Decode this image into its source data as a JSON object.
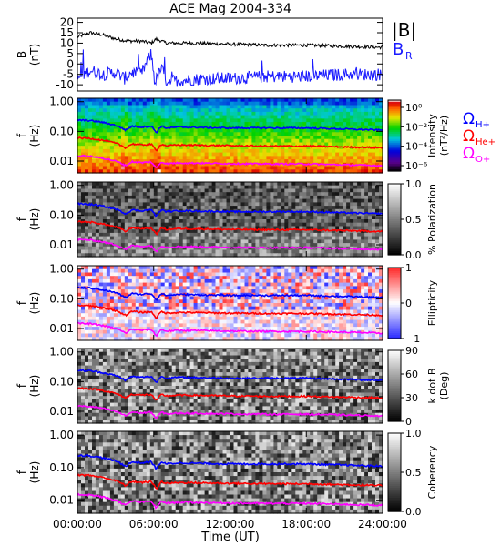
{
  "chart_data": [
    {
      "type": "line",
      "title": "ACE Mag 2004-334",
      "ylabel": "B\n(nT)",
      "ylim": [
        -13,
        22
      ],
      "yticks": [
        -10,
        -5,
        0,
        5,
        10,
        15,
        20
      ],
      "xlim": [
        0,
        24
      ],
      "series": [
        {
          "name": "|B|",
          "color": "#000000",
          "x": [
            0,
            1,
            2,
            3,
            4,
            5,
            5.8,
            6.2,
            7,
            9,
            12,
            15,
            18,
            21,
            24
          ],
          "values": [
            13,
            15,
            14,
            12,
            11,
            11,
            10,
            12,
            10,
            10,
            9.5,
            9,
            9,
            8.5,
            8
          ]
        },
        {
          "name": "B_R",
          "color": "#1a1aff",
          "x": [
            0,
            1,
            2,
            3,
            3.7,
            4.2,
            5,
            5.8,
            6.1,
            6.6,
            7,
            8,
            10,
            12,
            15,
            18,
            21,
            24
          ],
          "values": [
            -7,
            -3,
            -5,
            -4,
            -7,
            -4,
            -5,
            5,
            -9,
            -2,
            -8,
            -8,
            -7,
            -7,
            -6,
            -6,
            -5,
            -5
          ]
        }
      ],
      "legend": {
        "title_labels": [
          "|B|",
          "B",
          "R"
        ]
      }
    },
    {
      "type": "heatmap",
      "ylabel": "f\n(Hz)",
      "yscale": "log",
      "ylim": [
        0.004,
        1.3
      ],
      "yticks": [
        "1.00",
        "0.10",
        "0.01"
      ],
      "colorbar": {
        "label": "Intensity\n(nT²/Hz)",
        "scale": "log",
        "ticks": [
          "10⁰",
          "10⁻²",
          "10⁻⁴",
          "10⁻⁶"
        ],
        "colormap": "rainbow"
      },
      "legend": [
        {
          "text": "Ω",
          "sub": "H+",
          "color": "#0000ff"
        },
        {
          "text": "Ω",
          "sub": "He+",
          "color": "#ff0000"
        },
        {
          "text": "Ω",
          "sub": "O+",
          "color": "#ff00ff"
        }
      ]
    },
    {
      "type": "heatmap",
      "ylabel": "f\n(Hz)",
      "yscale": "log",
      "ylim": [
        0.004,
        1.3
      ],
      "yticks": [
        "1.00",
        "0.10",
        "0.01"
      ],
      "colorbar": {
        "label": "% Polarization",
        "colormap": "gray",
        "ticks": [
          "1.0",
          "0.5",
          "0.0"
        ]
      }
    },
    {
      "type": "heatmap",
      "ylabel": "f\n(Hz)",
      "yscale": "log",
      "ylim": [
        0.004,
        1.3
      ],
      "yticks": [
        "1.00",
        "0.10",
        "0.01"
      ],
      "colorbar": {
        "label": "Ellipticity",
        "colormap": "bwr",
        "ticks": [
          "1",
          "0",
          "−1"
        ]
      }
    },
    {
      "type": "heatmap",
      "ylabel": "f\n(Hz)",
      "yscale": "log",
      "ylim": [
        0.004,
        1.3
      ],
      "yticks": [
        "1.00",
        "0.10",
        "0.01"
      ],
      "colorbar": {
        "label": "k dot B\n(Deg)",
        "colormap": "gray",
        "ticks": [
          "90",
          "60",
          "30",
          "0"
        ]
      }
    },
    {
      "type": "heatmap",
      "ylabel": "f\n(Hz)",
      "yscale": "log",
      "ylim": [
        0.004,
        1.3
      ],
      "yticks": [
        "1.00",
        "0.10",
        "0.01"
      ],
      "colorbar": {
        "label": "Coherency",
        "colormap": "gray",
        "ticks": [
          "1.0",
          "0.5",
          "0.0"
        ]
      }
    }
  ],
  "gyro_lines": {
    "hours": [
      0,
      1,
      2,
      3,
      3.8,
      4.3,
      5,
      5.8,
      6.2,
      6.6,
      7,
      8,
      10,
      12,
      15,
      18,
      21,
      24
    ],
    "H+": [
      0.24,
      0.23,
      0.2,
      0.16,
      0.11,
      0.15,
      0.14,
      0.15,
      0.09,
      0.15,
      0.13,
      0.14,
      0.135,
      0.13,
      0.13,
      0.13,
      0.12,
      0.11
    ],
    "He+": [
      0.06,
      0.058,
      0.05,
      0.04,
      0.028,
      0.038,
      0.035,
      0.037,
      0.022,
      0.037,
      0.033,
      0.035,
      0.034,
      0.033,
      0.032,
      0.032,
      0.03,
      0.028
    ],
    "O+": [
      0.015,
      0.0145,
      0.0125,
      0.01,
      0.007,
      0.0095,
      0.0088,
      0.0093,
      0.0056,
      0.0093,
      0.0082,
      0.0087,
      0.0085,
      0.0082,
      0.008,
      0.008,
      0.0075,
      0.007
    ]
  },
  "xaxis": {
    "label": "Time (UT)",
    "tick_hours": [
      0,
      6,
      12,
      18,
      24
    ],
    "tick_labels": [
      "00:00:00",
      "06:00:00",
      "12:00:00",
      "18:00:00",
      "24:00:00"
    ]
  }
}
